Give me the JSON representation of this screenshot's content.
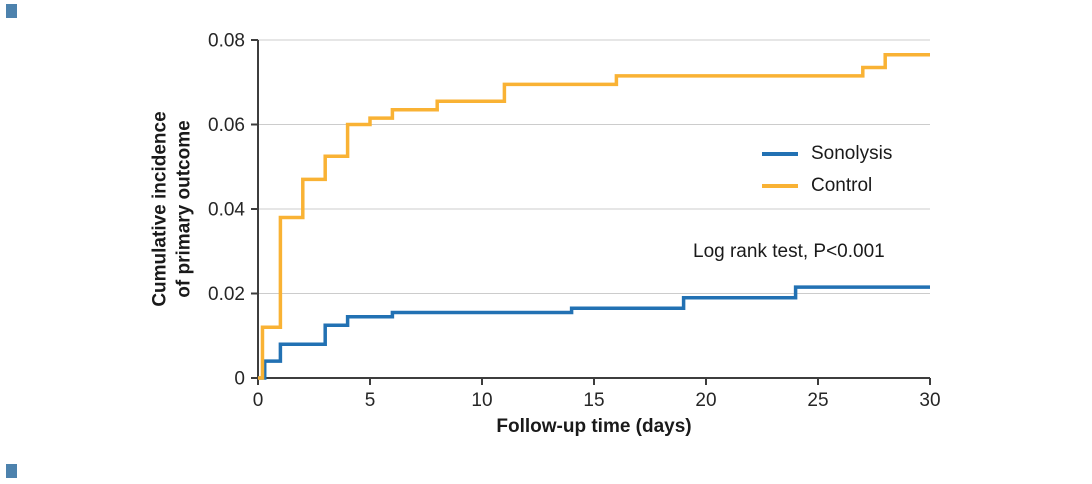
{
  "chart_data": {
    "type": "line",
    "subtype": "step-after",
    "title": "",
    "xlabel": "Follow-up time (days)",
    "ylabel_lines": [
      "Cumulative incidence",
      "of primary outcome"
    ],
    "xlim": [
      0,
      30
    ],
    "ylim": [
      0,
      0.08
    ],
    "xticks": [
      {
        "v": 0,
        "label": "0"
      },
      {
        "v": 5,
        "label": "5"
      },
      {
        "v": 10,
        "label": "10"
      },
      {
        "v": 15,
        "label": "15"
      },
      {
        "v": 20,
        "label": "20"
      },
      {
        "v": 25,
        "label": "25"
      },
      {
        "v": 30,
        "label": "30"
      }
    ],
    "yticks": [
      {
        "v": 0,
        "label": "0"
      },
      {
        "v": 0.02,
        "label": "0.02"
      },
      {
        "v": 0.04,
        "label": "0.04"
      },
      {
        "v": 0.06,
        "label": "0.06"
      },
      {
        "v": 0.08,
        "label": "0.08"
      }
    ],
    "grid": "horizontal",
    "legend_position": "inside-right",
    "annotation": "Log rank test, P<0.001",
    "colors": {
      "axis": "#3d3d3d",
      "grid": "#cccccc",
      "text": "#262626"
    },
    "series": [
      {
        "name": "Sonolysis",
        "color": "#2271B3",
        "steps": [
          [
            0,
            0
          ],
          [
            0.3,
            0.004
          ],
          [
            1,
            0.008
          ],
          [
            3,
            0.0125
          ],
          [
            4,
            0.0145
          ],
          [
            6,
            0.0155
          ],
          [
            14,
            0.0165
          ],
          [
            19,
            0.019
          ],
          [
            24,
            0.0215
          ],
          [
            30,
            0.0215
          ]
        ]
      },
      {
        "name": "Control",
        "color": "#F9B234",
        "steps": [
          [
            0,
            0
          ],
          [
            0.2,
            0.012
          ],
          [
            1,
            0.038
          ],
          [
            2,
            0.047
          ],
          [
            3,
            0.0525
          ],
          [
            4,
            0.06
          ],
          [
            5,
            0.0615
          ],
          [
            6,
            0.0635
          ],
          [
            8,
            0.0655
          ],
          [
            11,
            0.0695
          ],
          [
            16,
            0.0715
          ],
          [
            27,
            0.0735
          ],
          [
            28,
            0.0765
          ],
          [
            30,
            0.0765
          ]
        ]
      }
    ]
  }
}
